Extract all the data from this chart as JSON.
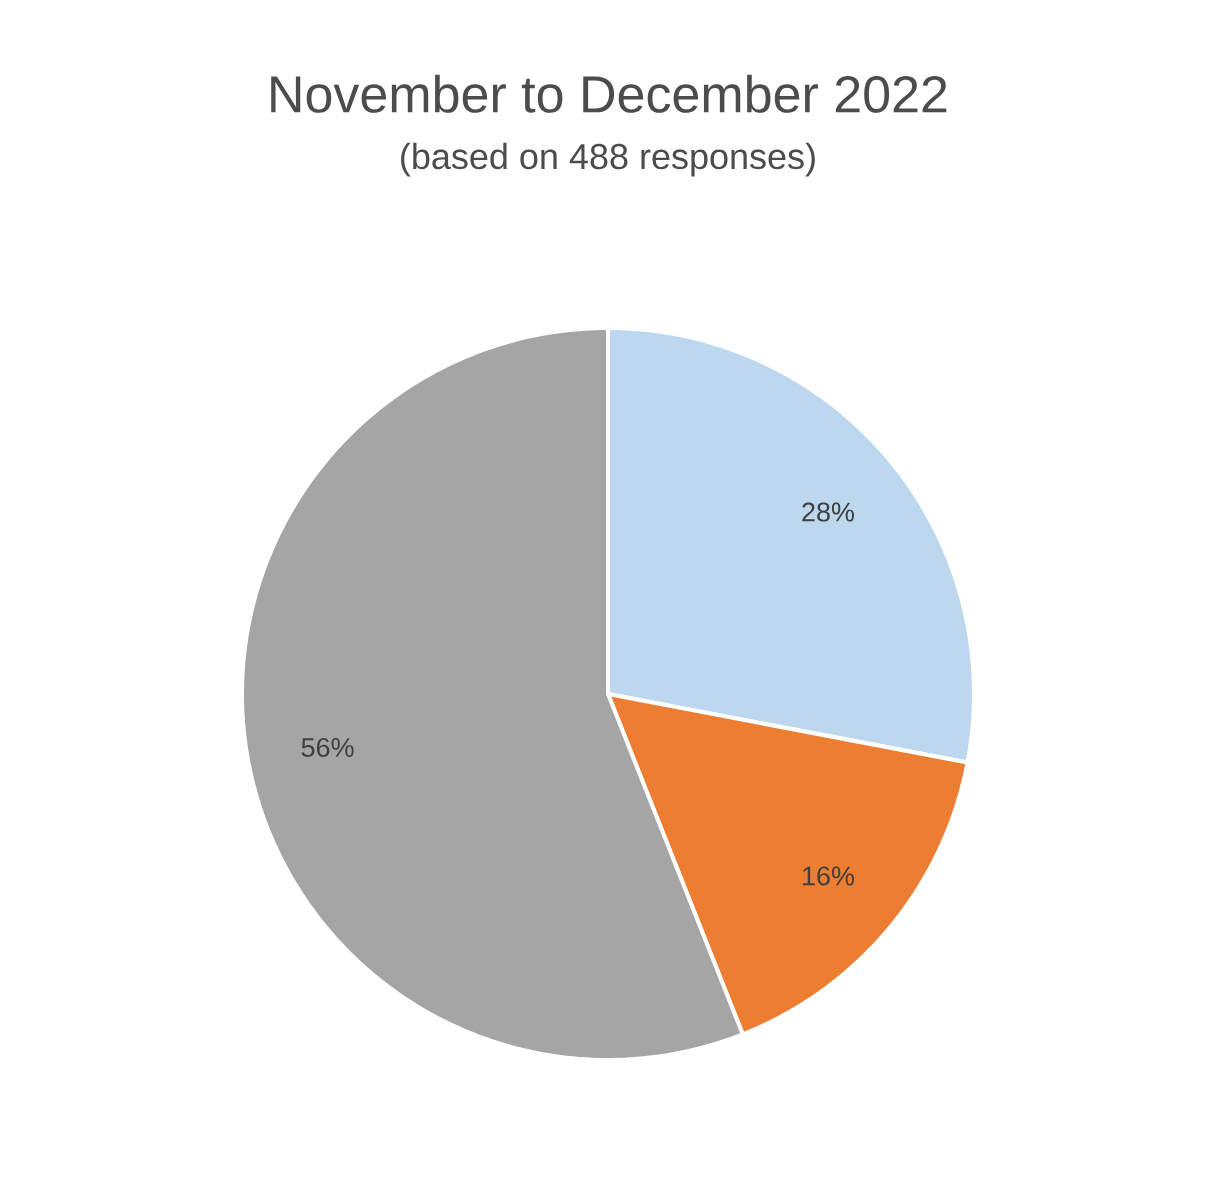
{
  "chart_data": {
    "type": "pie",
    "title": "November to December 2022",
    "subtitle": "(based on 488 responses)",
    "categories": [
      null,
      null,
      null
    ],
    "values": [
      28,
      16,
      56
    ],
    "colors": [
      "#bdd7ee",
      "#ed7d31",
      "#a5a5a5"
    ],
    "value_labels": [
      "28%",
      "16%",
      "56%"
    ]
  }
}
